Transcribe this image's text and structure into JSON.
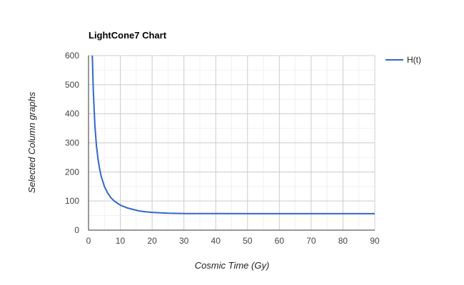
{
  "chart_data": {
    "type": "line",
    "title": "LightCone7 Chart",
    "xlabel": "Cosmic Time (Gy)",
    "ylabel": "Selected Column graphs",
    "xlim": [
      0,
      90
    ],
    "ylim": [
      0,
      600
    ],
    "x_ticks": [
      "0",
      "10",
      "20",
      "30",
      "40",
      "50",
      "60",
      "70",
      "80",
      "90"
    ],
    "y_ticks": [
      "0",
      "100",
      "200",
      "300",
      "400",
      "500",
      "600"
    ],
    "grid": true,
    "legend_position": "right",
    "series": [
      {
        "name": "H(t)",
        "color": "#3366cc",
        "x": [
          1.2,
          1.5,
          2,
          2.5,
          3,
          3.5,
          4,
          5,
          6,
          7,
          8,
          9,
          10,
          12,
          14,
          16,
          18,
          20,
          25,
          30,
          40,
          50,
          60,
          70,
          80,
          90
        ],
        "y": [
          600,
          480,
          361,
          290,
          243,
          210,
          185,
          150,
          128,
          112,
          101,
          93,
          86,
          77,
          71,
          66,
          63,
          61,
          58,
          57,
          57,
          56.5,
          56.5,
          56.5,
          56.5,
          56.5
        ]
      }
    ]
  }
}
